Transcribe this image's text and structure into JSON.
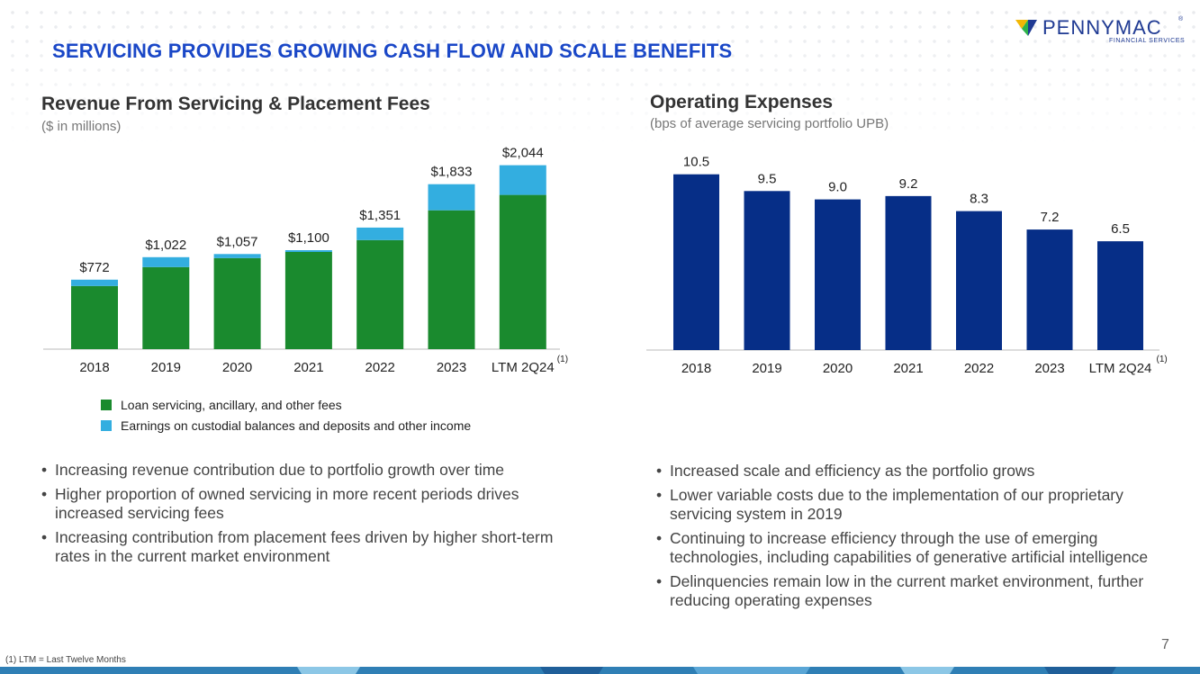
{
  "header": {
    "title": "SERVICING PROVIDES GROWING CASH FLOW AND SCALE BENEFITS",
    "logo_text": "PENNYMAC",
    "logo_subtext": "FINANCIAL SERVICES",
    "logo_reg": "®"
  },
  "left_panel": {
    "title": "Revenue From Servicing & Placement Fees",
    "subtitle": "($ in millions)",
    "footnote_marker": "(1)",
    "legend": [
      {
        "label": "Loan servicing, ancillary, and other fees",
        "color": "#1a8a2e"
      },
      {
        "label": "Earnings on custodial balances and deposits and other income",
        "color": "#33aee0"
      }
    ],
    "bullets": [
      "Increasing revenue contribution due to portfolio growth over time",
      "Higher proportion of owned servicing in more recent periods drives increased servicing fees",
      "Increasing contribution from placement fees driven by higher short-term rates in the current market environment"
    ]
  },
  "right_panel": {
    "title": "Operating Expenses",
    "subtitle": "(bps of average servicing portfolio UPB)",
    "footnote_marker": "(1)",
    "bullets": [
      "Increased scale and efficiency as the portfolio grows",
      "Lower variable costs due to the implementation of our proprietary servicing system in 2019",
      "Continuing to increase efficiency through the use of emerging technologies, including capabilities of generative artificial intelligence",
      "Delinquencies remain low in the current market environment, further reducing operating expenses"
    ]
  },
  "chart_data": [
    {
      "type": "bar",
      "stacked": true,
      "title": "Revenue From Servicing & Placement Fees",
      "ylabel": "$ in millions",
      "categories": [
        "2018",
        "2019",
        "2020",
        "2021",
        "2022",
        "2023",
        "LTM 2Q24"
      ],
      "series": [
        {
          "name": "Loan servicing, ancillary, and other fees",
          "color": "#1a8a2e",
          "values": [
            702,
            912,
            1012,
            1080,
            1212,
            1543,
            1714
          ]
        },
        {
          "name": "Earnings on custodial balances and deposits and other income",
          "color": "#33aee0",
          "values": [
            70,
            110,
            45,
            20,
            139,
            290,
            330
          ]
        }
      ],
      "totals": [
        "$772",
        "$1,022",
        "$1,057",
        "$1,100",
        "$1,351",
        "$1,833",
        "$2,044"
      ],
      "ylim": [
        0,
        2300
      ]
    },
    {
      "type": "bar",
      "title": "Operating Expenses",
      "ylabel": "bps of average servicing portfolio UPB",
      "categories": [
        "2018",
        "2019",
        "2020",
        "2021",
        "2022",
        "2023",
        "LTM 2Q24"
      ],
      "series": [
        {
          "name": "Operating Expenses",
          "color": "#062e87",
          "values": [
            10.5,
            9.5,
            9.0,
            9.2,
            8.3,
            7.2,
            6.5
          ]
        }
      ],
      "labels": [
        "10.5",
        "9.5",
        "9.0",
        "9.2",
        "8.3",
        "7.2",
        "6.5"
      ],
      "ylim": [
        0,
        12
      ]
    }
  ],
  "footer": {
    "footnote": "(1)  LTM = Last Twelve Months",
    "page_number": "7"
  },
  "colors": {
    "title_blue": "#1a47c7",
    "logo_blue": "#1f3a93",
    "green": "#1a8a2e",
    "light_blue": "#33aee0",
    "navy": "#062e87"
  }
}
